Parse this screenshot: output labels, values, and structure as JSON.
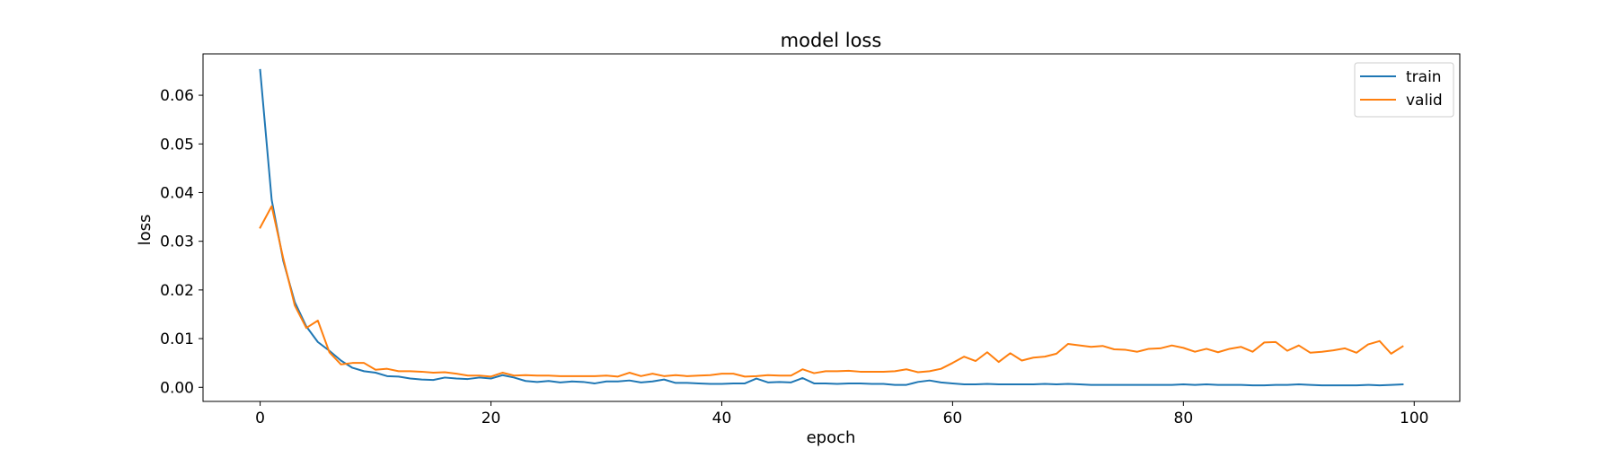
{
  "chart_data": {
    "type": "line",
    "title": "model loss",
    "xlabel": "epoch",
    "ylabel": "loss",
    "xlim": [
      -4.95,
      103.95
    ],
    "ylim": [
      -0.0029,
      0.0685
    ],
    "xticks": [
      0,
      20,
      40,
      60,
      80,
      100
    ],
    "yticks": [
      0.0,
      0.01,
      0.02,
      0.03,
      0.04,
      0.05,
      0.06
    ],
    "ytick_labels": [
      "0.00",
      "0.01",
      "0.02",
      "0.03",
      "0.04",
      "0.05",
      "0.06"
    ],
    "grid": false,
    "legend_position": "top-right",
    "series": [
      {
        "name": "train",
        "color": "#1f77b4",
        "values": [
          0.0652,
          0.0385,
          0.026,
          0.0175,
          0.0125,
          0.0093,
          0.0075,
          0.0055,
          0.004,
          0.0033,
          0.003,
          0.0023,
          0.0022,
          0.0018,
          0.0016,
          0.0015,
          0.002,
          0.0018,
          0.0017,
          0.002,
          0.0018,
          0.0025,
          0.002,
          0.0013,
          0.0011,
          0.0013,
          0.001,
          0.0012,
          0.0011,
          0.0008,
          0.0012,
          0.0012,
          0.0014,
          0.001,
          0.0012,
          0.0016,
          0.0009,
          0.0009,
          0.0008,
          0.0007,
          0.0007,
          0.0008,
          0.0008,
          0.0018,
          0.001,
          0.0011,
          0.001,
          0.0019,
          0.0008,
          0.0008,
          0.0007,
          0.0008,
          0.0008,
          0.0007,
          0.0007,
          0.0005,
          0.0005,
          0.0011,
          0.0014,
          0.001,
          0.0008,
          0.0006,
          0.0006,
          0.0007,
          0.0006,
          0.0006,
          0.0006,
          0.0006,
          0.0007,
          0.0006,
          0.0007,
          0.0006,
          0.0005,
          0.0005,
          0.0005,
          0.0005,
          0.0005,
          0.0005,
          0.0005,
          0.0005,
          0.0006,
          0.0005,
          0.0006,
          0.0005,
          0.0005,
          0.0005,
          0.0004,
          0.0004,
          0.0005,
          0.0005,
          0.0006,
          0.0005,
          0.0004,
          0.0004,
          0.0004,
          0.0004,
          0.0005,
          0.0004,
          0.0005,
          0.0006
        ]
      },
      {
        "name": "valid",
        "color": "#ff7f0e",
        "values": [
          0.0328,
          0.0372,
          0.0265,
          0.0168,
          0.0122,
          0.0137,
          0.0072,
          0.0047,
          0.005,
          0.005,
          0.0036,
          0.0038,
          0.0033,
          0.0033,
          0.0032,
          0.003,
          0.0031,
          0.0028,
          0.0024,
          0.0024,
          0.0022,
          0.003,
          0.0024,
          0.0025,
          0.0024,
          0.0024,
          0.0023,
          0.0023,
          0.0023,
          0.0023,
          0.0024,
          0.0022,
          0.003,
          0.0023,
          0.0028,
          0.0023,
          0.0025,
          0.0023,
          0.0024,
          0.0025,
          0.0028,
          0.0028,
          0.0022,
          0.0023,
          0.0025,
          0.0024,
          0.0024,
          0.0037,
          0.0029,
          0.0033,
          0.0033,
          0.0034,
          0.0032,
          0.0032,
          0.0032,
          0.0033,
          0.0037,
          0.0031,
          0.0033,
          0.0038,
          0.005,
          0.0063,
          0.0054,
          0.0072,
          0.0052,
          0.007,
          0.0055,
          0.0061,
          0.0063,
          0.0069,
          0.0089,
          0.0086,
          0.0083,
          0.0085,
          0.0078,
          0.0077,
          0.0073,
          0.0079,
          0.008,
          0.0086,
          0.0081,
          0.0073,
          0.0079,
          0.0072,
          0.0079,
          0.0083,
          0.0073,
          0.0092,
          0.0093,
          0.0075,
          0.0086,
          0.0071,
          0.0073,
          0.0076,
          0.008,
          0.0071,
          0.0088,
          0.0095,
          0.0069,
          0.0084
        ]
      }
    ]
  }
}
